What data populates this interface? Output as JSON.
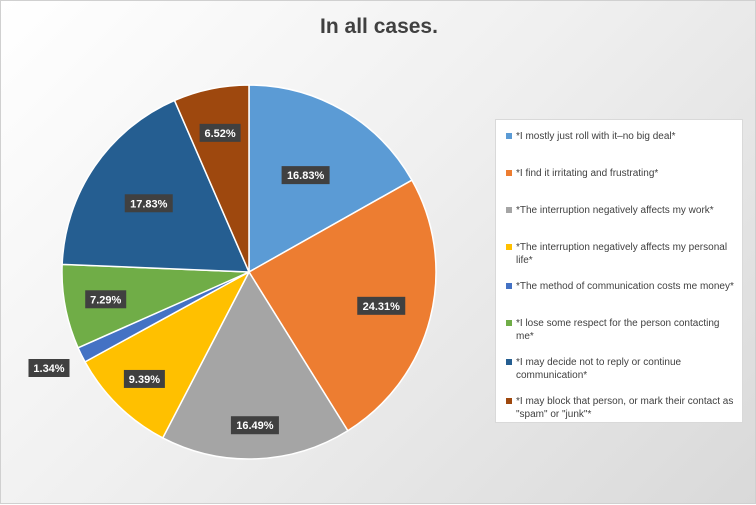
{
  "chart_data": {
    "type": "pie",
    "title": "In all cases.",
    "legend_position": "right",
    "slices": [
      {
        "label": "*I mostly just roll with it–no big deal*",
        "value": 16.83,
        "value_label": "16.83%",
        "color": "#5B9BD5"
      },
      {
        "label": "*I find it irritating and frustrating*",
        "value": 24.31,
        "value_label": "24.31%",
        "color": "#ED7D31"
      },
      {
        "label": "*The interruption negatively affects my work*",
        "value": 16.49,
        "value_label": "16.49%",
        "color": "#A5A5A5"
      },
      {
        "label": "*The interruption negatively affects my personal life*",
        "value": 9.39,
        "value_label": "9.39%",
        "color": "#FFC000"
      },
      {
        "label": "*The method of communication costs me money*",
        "value": 1.34,
        "value_label": "1.34%",
        "color": "#4472C4"
      },
      {
        "label": "*I lose some respect for the person contacting me*",
        "value": 7.29,
        "value_label": "7.29%",
        "color": "#70AD47"
      },
      {
        "label": "*I may decide not to reply or continue communication*",
        "value": 17.83,
        "value_label": "17.83%",
        "color": "#255E91"
      },
      {
        "label": "*I may block that person, or mark their contact as \"spam\" or \"junk\"*",
        "value": 6.52,
        "value_label": "6.52%",
        "color": "#9E480E"
      }
    ]
  }
}
